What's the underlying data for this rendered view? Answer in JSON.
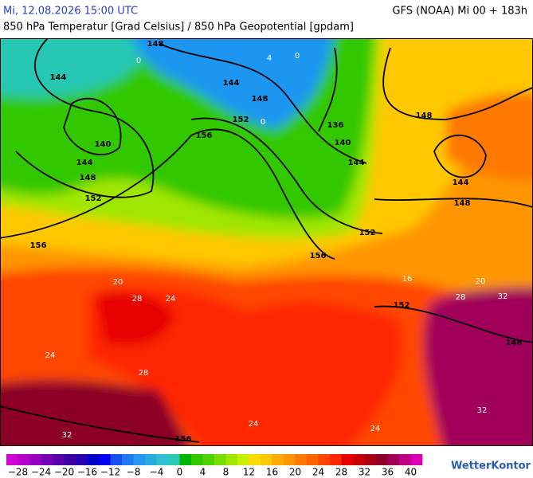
{
  "header": {
    "datetime": "Mi, 12.08.2026 15:00 UTC",
    "model": "GFS (NOAA) Mi 00 + 183h",
    "subtitle": "850 hPa Temperatur [Grad Celsius] / 850 hPa Geopotential [gpdam]"
  },
  "map": {
    "geopotential_labels": [
      "148",
      "144",
      "144",
      "148",
      "140",
      "152",
      "156",
      "136",
      "140",
      "144",
      "148",
      "144",
      "148",
      "144",
      "148",
      "152",
      "156",
      "152",
      "156",
      "152",
      "148",
      "156"
    ],
    "temperature_labels": [
      "28",
      "24",
      "20",
      "24",
      "28",
      "32",
      "24",
      "24",
      "32",
      "28",
      "32",
      "20",
      "16",
      "0",
      "4",
      "0",
      "0"
    ]
  },
  "colorbar": {
    "labels": [
      "−28",
      "−24",
      "−20",
      "−16",
      "−12",
      "−8",
      "−4",
      "0",
      "4",
      "8",
      "12",
      "16",
      "20",
      "24",
      "28",
      "32",
      "36",
      "40"
    ],
    "colors": [
      "#d200d2",
      "#b400c8",
      "#9600be",
      "#7800b4",
      "#5a00aa",
      "#3c00a0",
      "#2800b4",
      "#0000c8",
      "#0000f0",
      "#1450f0",
      "#1e78f0",
      "#2896f0",
      "#28aadc",
      "#32bed2",
      "#28c8b4",
      "#00b400",
      "#32c800",
      "#50d200",
      "#78dc00",
      "#a0e600",
      "#c8f000",
      "#ffdc00",
      "#ffc800",
      "#ffaa00",
      "#ff9600",
      "#ff7800",
      "#ff6400",
      "#ff4600",
      "#ff2800",
      "#e60000",
      "#c80000",
      "#aa0014",
      "#8c0028",
      "#a0005a",
      "#be0082",
      "#dc00b4"
    ]
  },
  "logo": "WetterKontor"
}
